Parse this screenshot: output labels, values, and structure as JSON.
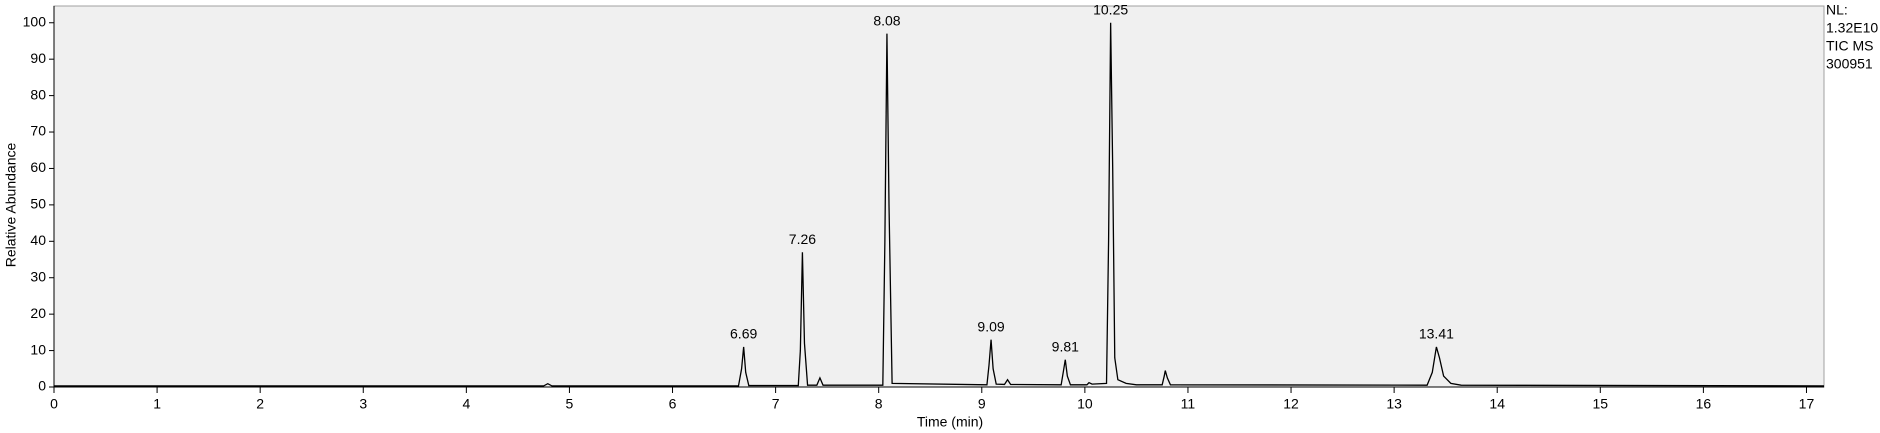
{
  "chart_data": {
    "type": "line",
    "xlabel": "Time (min)",
    "ylabel": "Relative Abundance",
    "side_text": [
      "NL:",
      "1.32E10",
      "TIC  MS",
      "300951"
    ],
    "xlim": [
      0,
      17.17
    ],
    "ylim": [
      0,
      104.6
    ],
    "xticks": [
      0,
      1,
      2,
      3,
      4,
      5,
      6,
      7,
      8,
      9,
      10,
      11,
      12,
      13,
      14,
      15,
      16,
      17
    ],
    "yticks": [
      0,
      10,
      20,
      30,
      40,
      50,
      60,
      70,
      80,
      90,
      100
    ],
    "color": "#000000",
    "background": "#f0f0f0",
    "x": [
      0,
      4.75,
      4.79,
      4.83,
      6.64,
      6.67,
      6.69,
      6.71,
      6.74,
      7.22,
      7.24,
      7.26,
      7.28,
      7.31,
      7.4,
      7.43,
      7.46,
      8.04,
      8.06,
      8.08,
      8.1,
      8.13,
      9.05,
      9.07,
      9.09,
      9.11,
      9.14,
      9.22,
      9.25,
      9.28,
      9.77,
      9.79,
      9.81,
      9.83,
      9.86,
      10.02,
      10.04,
      10.07,
      10.21,
      10.23,
      10.25,
      10.27,
      10.29,
      10.32,
      10.4,
      10.5,
      10.75,
      10.77,
      10.78,
      10.8,
      10.83,
      13.32,
      13.37,
      13.41,
      13.44,
      13.48,
      13.55,
      13.65,
      17.17
    ],
    "values": [
      0.3,
      0.3,
      0.9,
      0.3,
      0.3,
      5,
      11,
      4,
      0.4,
      0.4,
      10,
      37,
      12,
      0.5,
      0.5,
      2.5,
      0.5,
      0.5,
      40,
      97,
      50,
      1,
      0.6,
      6,
      13,
      5,
      0.8,
      0.7,
      2,
      0.7,
      0.6,
      4,
      7.5,
      3,
      0.6,
      0.6,
      1.2,
      0.8,
      1,
      40,
      100,
      60,
      8,
      2,
      1,
      0.6,
      0.6,
      3,
      4.5,
      2.5,
      0.6,
      0.5,
      4,
      11,
      8,
      3,
      1,
      0.5,
      0.3
    ],
    "peak_labels": [
      6.69,
      7.26,
      8.08,
      9.09,
      9.81,
      10.25,
      13.41
    ]
  }
}
